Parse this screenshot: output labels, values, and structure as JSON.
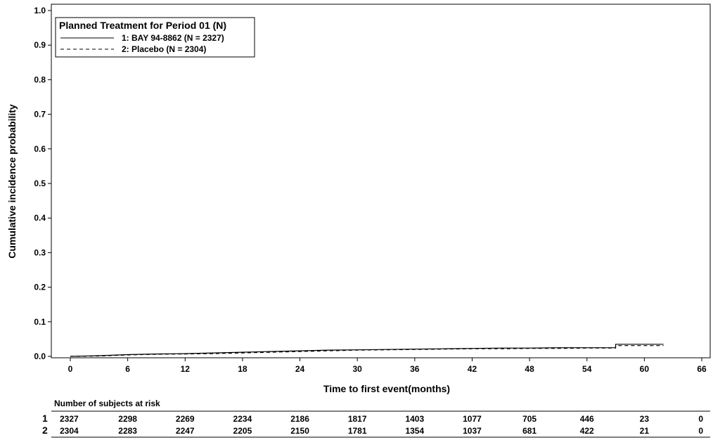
{
  "chart_data": {
    "type": "line",
    "xlabel": "Time to first event(months)",
    "ylabel": "Cumulative incidence probability",
    "xlim": [
      0,
      66
    ],
    "ylim": [
      0,
      1.0
    ],
    "xticks": [
      "0",
      "6",
      "12",
      "18",
      "24",
      "30",
      "36",
      "42",
      "48",
      "54",
      "60",
      "66"
    ],
    "yticks": [
      "0.0",
      "0.1",
      "0.2",
      "0.3",
      "0.4",
      "0.5",
      "0.6",
      "0.7",
      "0.8",
      "0.9",
      "1.0"
    ],
    "legend": {
      "title": "Planned Treatment for Period 01 (N)",
      "placement": "top-left"
    },
    "series": [
      {
        "name": "1: BAY 94-8862 (N = 2327)",
        "line_style": "solid",
        "x": [
          0,
          3,
          6,
          9,
          12,
          15,
          18,
          21,
          24,
          27,
          30,
          33,
          36,
          39,
          42,
          45,
          48,
          51,
          54,
          57,
          57,
          62
        ],
        "y": [
          0,
          0.002,
          0.005,
          0.007,
          0.008,
          0.01,
          0.012,
          0.014,
          0.016,
          0.018,
          0.019,
          0.02,
          0.021,
          0.022,
          0.023,
          0.024,
          0.024,
          0.025,
          0.025,
          0.025,
          0.035,
          0.035
        ]
      },
      {
        "name": "2: Placebo (N = 2304)",
        "line_style": "dashed",
        "x": [
          0,
          3,
          6,
          9,
          12,
          15,
          18,
          21,
          24,
          27,
          30,
          33,
          36,
          39,
          42,
          45,
          48,
          51,
          54,
          57,
          57,
          62
        ],
        "y": [
          0,
          0.001,
          0.004,
          0.006,
          0.007,
          0.008,
          0.01,
          0.012,
          0.014,
          0.016,
          0.018,
          0.019,
          0.02,
          0.021,
          0.022,
          0.022,
          0.023,
          0.023,
          0.024,
          0.024,
          0.031,
          0.031
        ]
      }
    ],
    "risk_table": {
      "title": "Number of subjects at risk",
      "rows": [
        {
          "label": "1",
          "values": [
            "2327",
            "2298",
            "2269",
            "2234",
            "2186",
            "1817",
            "1403",
            "1077",
            "705",
            "446",
            "23",
            "0"
          ]
        },
        {
          "label": "2",
          "values": [
            "2304",
            "2283",
            "2247",
            "2205",
            "2150",
            "1781",
            "1354",
            "1037",
            "681",
            "422",
            "21",
            "0"
          ]
        }
      ]
    }
  }
}
